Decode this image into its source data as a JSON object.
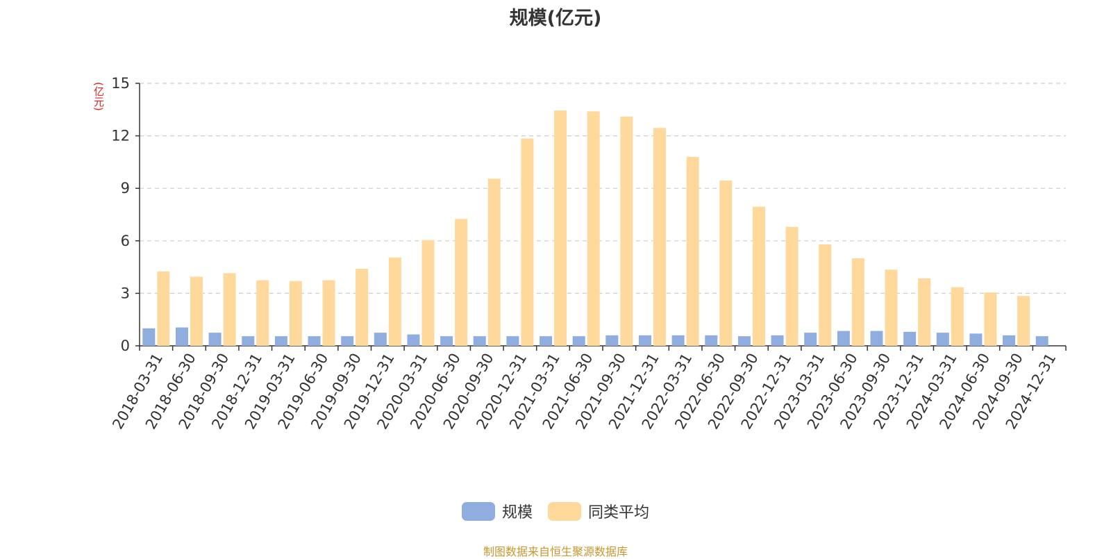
{
  "chart_data": {
    "type": "bar",
    "title": "规模(亿元)",
    "ylabel": "(亿元)",
    "xlabel": "",
    "ylim": [
      0,
      15
    ],
    "yticks": [
      0,
      3,
      6,
      9,
      12,
      15
    ],
    "grid": true,
    "legend_position": "bottom-center",
    "categories": [
      "2018-03-31",
      "2018-06-30",
      "2018-09-30",
      "2018-12-31",
      "2019-03-31",
      "2019-06-30",
      "2019-09-30",
      "2019-12-31",
      "2020-03-31",
      "2020-06-30",
      "2020-09-30",
      "2020-12-31",
      "2021-03-31",
      "2021-06-30",
      "2021-09-30",
      "2021-12-31",
      "2022-03-31",
      "2022-06-30",
      "2022-09-30",
      "2022-12-31",
      "2023-03-31",
      "2023-06-30",
      "2023-09-30",
      "2023-12-31",
      "2024-03-31",
      "2024-06-30",
      "2024-09-30",
      "2024-12-31"
    ],
    "series": [
      {
        "name": "规模",
        "color": "#8fadde",
        "values": [
          1.0,
          1.05,
          0.75,
          0.55,
          0.55,
          0.55,
          0.55,
          0.75,
          0.65,
          0.55,
          0.55,
          0.55,
          0.55,
          0.55,
          0.6,
          0.6,
          0.6,
          0.6,
          0.55,
          0.6,
          0.75,
          0.85,
          0.85,
          0.8,
          0.75,
          0.7,
          0.6,
          0.55
        ]
      },
      {
        "name": "同类平均",
        "color": "#ffd99b",
        "values": [
          4.25,
          3.95,
          4.15,
          3.75,
          3.7,
          3.75,
          4.4,
          5.05,
          6.05,
          7.25,
          9.55,
          11.85,
          13.45,
          13.4,
          13.1,
          12.45,
          10.8,
          9.45,
          7.95,
          6.8,
          5.8,
          5.0,
          4.35,
          3.85,
          3.35,
          3.05,
          2.85,
          null
        ]
      }
    ]
  },
  "source_note": "制图数据来自恒生聚源数据库"
}
